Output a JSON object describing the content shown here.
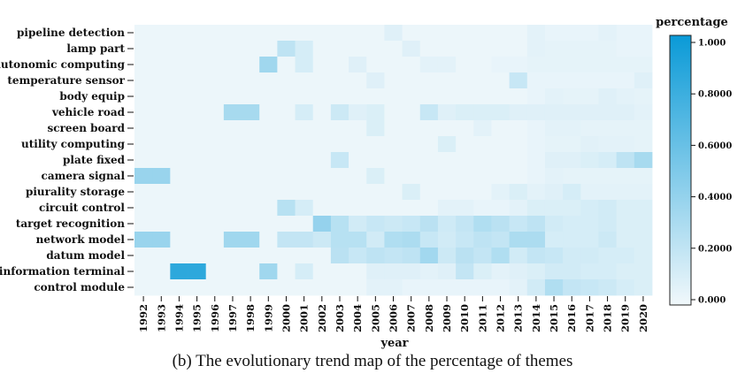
{
  "caption": "(b) The evolutionary trend map of the percentage of themes",
  "chart_data": {
    "type": "heatmap",
    "xlabel": "year",
    "x": [
      "1992",
      "1993",
      "1994",
      "1995",
      "1996",
      "1997",
      "1998",
      "1999",
      "2000",
      "2001",
      "2002",
      "2003",
      "2004",
      "2005",
      "2006",
      "2007",
      "2008",
      "2009",
      "2010",
      "2011",
      "2012",
      "2013",
      "2014",
      "2015",
      "2016",
      "2017",
      "2018",
      "2019",
      "2020"
    ],
    "y": [
      "pipeline detection",
      "lamp part",
      "autonomic computing",
      "temperature sensor",
      "body equip",
      "vehicle road",
      "screen board",
      "utility computing",
      "plate fixed",
      "camera signal",
      "piurality storage",
      "circuit control",
      "target recognition",
      "network model",
      "datum model",
      "information terminal",
      "control module"
    ],
    "colorbar": {
      "title": "percentage",
      "ticks": [
        "1.000",
        "0.8000",
        "0.6000",
        "0.4000",
        "0.2000",
        "0.000"
      ],
      "range": [
        0,
        1
      ],
      "low_color": "#f1f8fb",
      "high_color": "#0a9ad7"
    },
    "values": [
      [
        0.02,
        0.02,
        0.02,
        0.02,
        0.02,
        0.02,
        0.02,
        0.02,
        0.02,
        0.02,
        0.02,
        0.02,
        0.02,
        0.02,
        0.08,
        0.02,
        0.02,
        0.02,
        0.02,
        0.02,
        0.02,
        0.02,
        0.06,
        0.04,
        0.04,
        0.04,
        0.06,
        0.04,
        0.04
      ],
      [
        0.02,
        0.02,
        0.02,
        0.02,
        0.02,
        0.02,
        0.02,
        0.02,
        0.22,
        0.12,
        0.02,
        0.02,
        0.02,
        0.02,
        0.02,
        0.08,
        0.02,
        0.02,
        0.02,
        0.02,
        0.02,
        0.02,
        0.06,
        0.05,
        0.05,
        0.05,
        0.05,
        0.04,
        0.04
      ],
      [
        0.02,
        0.02,
        0.02,
        0.02,
        0.02,
        0.02,
        0.02,
        0.35,
        0.02,
        0.12,
        0.02,
        0.02,
        0.08,
        0.02,
        0.02,
        0.02,
        0.06,
        0.06,
        0.02,
        0.02,
        0.04,
        0.04,
        0.05,
        0.05,
        0.05,
        0.05,
        0.05,
        0.05,
        0.05
      ],
      [
        0.02,
        0.02,
        0.02,
        0.02,
        0.02,
        0.02,
        0.02,
        0.02,
        0.02,
        0.02,
        0.02,
        0.02,
        0.02,
        0.08,
        0.02,
        0.02,
        0.02,
        0.02,
        0.02,
        0.02,
        0.02,
        0.18,
        0.04,
        0.04,
        0.04,
        0.04,
        0.04,
        0.04,
        0.08
      ],
      [
        0.02,
        0.02,
        0.02,
        0.02,
        0.02,
        0.02,
        0.02,
        0.02,
        0.02,
        0.02,
        0.02,
        0.02,
        0.02,
        0.02,
        0.02,
        0.02,
        0.02,
        0.02,
        0.02,
        0.02,
        0.02,
        0.02,
        0.04,
        0.06,
        0.05,
        0.05,
        0.08,
        0.06,
        0.05
      ],
      [
        0.02,
        0.02,
        0.02,
        0.02,
        0.02,
        0.32,
        0.32,
        0.02,
        0.02,
        0.12,
        0.02,
        0.16,
        0.08,
        0.1,
        0.02,
        0.02,
        0.18,
        0.08,
        0.1,
        0.1,
        0.1,
        0.08,
        0.08,
        0.08,
        0.08,
        0.08,
        0.08,
        0.08,
        0.06
      ],
      [
        0.02,
        0.02,
        0.02,
        0.02,
        0.02,
        0.02,
        0.02,
        0.02,
        0.02,
        0.02,
        0.02,
        0.02,
        0.02,
        0.1,
        0.02,
        0.02,
        0.02,
        0.02,
        0.02,
        0.06,
        0.02,
        0.02,
        0.04,
        0.06,
        0.06,
        0.05,
        0.05,
        0.05,
        0.05
      ],
      [
        0.02,
        0.02,
        0.02,
        0.02,
        0.02,
        0.02,
        0.02,
        0.02,
        0.02,
        0.02,
        0.02,
        0.02,
        0.02,
        0.02,
        0.02,
        0.02,
        0.02,
        0.1,
        0.02,
        0.02,
        0.02,
        0.02,
        0.04,
        0.05,
        0.05,
        0.07,
        0.06,
        0.06,
        0.05
      ],
      [
        0.02,
        0.02,
        0.02,
        0.02,
        0.02,
        0.02,
        0.02,
        0.02,
        0.02,
        0.02,
        0.02,
        0.18,
        0.02,
        0.02,
        0.02,
        0.02,
        0.02,
        0.02,
        0.02,
        0.02,
        0.02,
        0.02,
        0.04,
        0.08,
        0.08,
        0.1,
        0.12,
        0.22,
        0.32
      ],
      [
        0.38,
        0.38,
        0.02,
        0.02,
        0.02,
        0.02,
        0.02,
        0.02,
        0.02,
        0.02,
        0.02,
        0.02,
        0.02,
        0.1,
        0.02,
        0.02,
        0.02,
        0.02,
        0.02,
        0.02,
        0.02,
        0.02,
        0.04,
        0.06,
        0.05,
        0.05,
        0.05,
        0.05,
        0.05
      ],
      [
        0.02,
        0.02,
        0.02,
        0.02,
        0.02,
        0.02,
        0.02,
        0.02,
        0.02,
        0.02,
        0.02,
        0.02,
        0.02,
        0.02,
        0.02,
        0.1,
        0.02,
        0.02,
        0.02,
        0.02,
        0.06,
        0.1,
        0.06,
        0.08,
        0.12,
        0.06,
        0.06,
        0.06,
        0.06
      ],
      [
        0.02,
        0.02,
        0.02,
        0.02,
        0.02,
        0.02,
        0.02,
        0.02,
        0.25,
        0.12,
        0.02,
        0.02,
        0.02,
        0.02,
        0.02,
        0.02,
        0.02,
        0.06,
        0.06,
        0.04,
        0.04,
        0.06,
        0.1,
        0.1,
        0.1,
        0.12,
        0.14,
        0.1,
        0.1
      ],
      [
        0.02,
        0.02,
        0.02,
        0.02,
        0.02,
        0.02,
        0.02,
        0.02,
        0.02,
        0.02,
        0.4,
        0.25,
        0.14,
        0.18,
        0.16,
        0.18,
        0.24,
        0.15,
        0.2,
        0.28,
        0.24,
        0.18,
        0.22,
        0.14,
        0.12,
        0.12,
        0.14,
        0.1,
        0.1
      ],
      [
        0.38,
        0.38,
        0.02,
        0.02,
        0.02,
        0.35,
        0.35,
        0.02,
        0.2,
        0.2,
        0.16,
        0.25,
        0.25,
        0.14,
        0.28,
        0.3,
        0.18,
        0.14,
        0.18,
        0.22,
        0.2,
        0.3,
        0.3,
        0.12,
        0.12,
        0.12,
        0.16,
        0.1,
        0.1
      ],
      [
        0.02,
        0.02,
        0.02,
        0.02,
        0.02,
        0.02,
        0.02,
        0.02,
        0.02,
        0.02,
        0.02,
        0.24,
        0.18,
        0.22,
        0.2,
        0.22,
        0.34,
        0.16,
        0.24,
        0.2,
        0.28,
        0.14,
        0.2,
        0.18,
        0.14,
        0.14,
        0.12,
        0.12,
        0.1
      ],
      [
        0.02,
        0.02,
        0.85,
        0.85,
        0.02,
        0.02,
        0.02,
        0.35,
        0.02,
        0.12,
        0.02,
        0.02,
        0.02,
        0.08,
        0.08,
        0.08,
        0.06,
        0.08,
        0.2,
        0.1,
        0.06,
        0.08,
        0.1,
        0.14,
        0.14,
        0.12,
        0.12,
        0.1,
        0.1
      ],
      [
        0.02,
        0.02,
        0.02,
        0.02,
        0.02,
        0.02,
        0.02,
        0.02,
        0.02,
        0.02,
        0.02,
        0.02,
        0.02,
        0.06,
        0.06,
        0.04,
        0.04,
        0.04,
        0.04,
        0.04,
        0.04,
        0.06,
        0.14,
        0.28,
        0.2,
        0.18,
        0.16,
        0.12,
        0.1
      ]
    ]
  }
}
